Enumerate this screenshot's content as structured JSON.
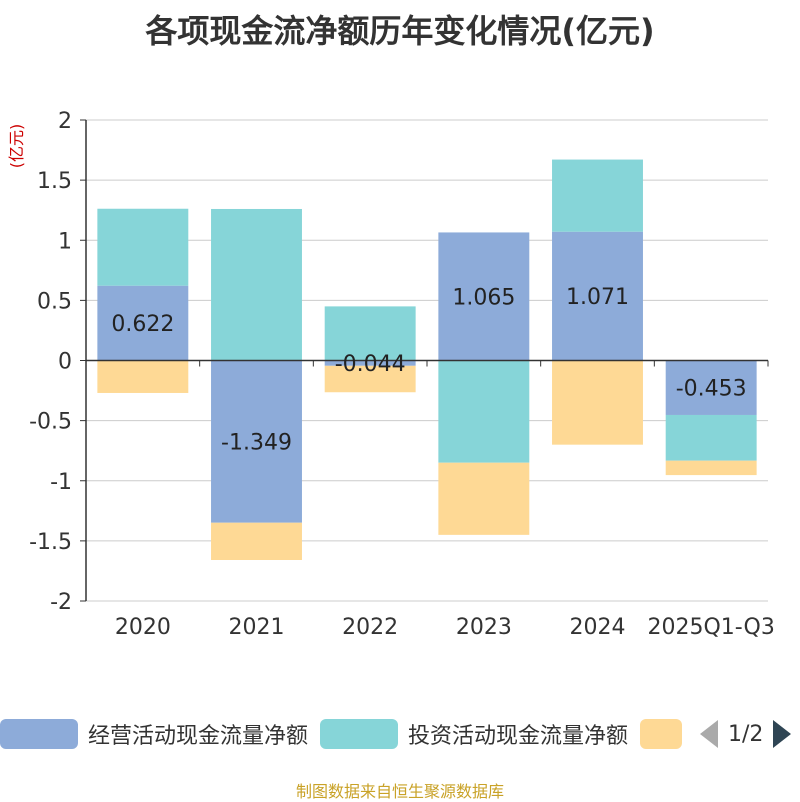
{
  "chart_data": {
    "type": "bar",
    "stacked": true,
    "title": "各项现金流净额历年变化情况(亿元)",
    "ylabel": "(亿元)",
    "categories": [
      "2020",
      "2021",
      "2022",
      "2023",
      "2024",
      "2025Q1-Q3"
    ],
    "ylim": [
      -2,
      2
    ],
    "yticks": [
      "2",
      "1.5",
      "1",
      "0.5",
      "0",
      "-0.5",
      "-1",
      "-1.5",
      "-2"
    ],
    "grid": true,
    "series": [
      {
        "name": "经营活动现金流量净额",
        "color": "#8dabd9",
        "values": [
          0.622,
          -1.349,
          -0.044,
          1.065,
          1.071,
          -0.453
        ],
        "labels": [
          "0.622",
          "-1.349",
          "-0.044",
          "1.065",
          "1.071",
          "-0.453"
        ]
      },
      {
        "name": "投资活动现金流量净额",
        "color": "#86d5d8",
        "values": [
          0.64,
          1.26,
          0.45,
          -0.85,
          0.6,
          -0.38
        ]
      },
      {
        "name": "",
        "color": "#fed995",
        "values": [
          -0.27,
          -0.31,
          -0.22,
          -0.6,
          -0.7,
          -0.12
        ]
      }
    ]
  },
  "legend": {
    "item1": "经营活动现金流量净额",
    "item2": "投资活动现金流量净额",
    "page": "1/2"
  },
  "footer": "制图数据来自恒生聚源数据库"
}
